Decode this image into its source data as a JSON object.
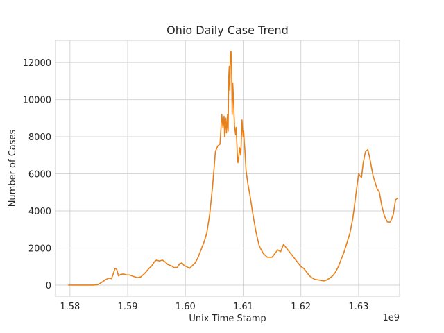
{
  "chart_data": {
    "type": "line",
    "title": "Ohio Daily Case Trend",
    "xlabel": "Unix Time Stamp",
    "ylabel": "Number of Cases",
    "x_offset_label": "1e9",
    "x_scale": 1000000000,
    "xlim": [
      1.5775,
      1.6371
    ],
    "ylim": [
      -600,
      13200
    ],
    "x_ticks": [
      1.58,
      1.59,
      1.6,
      1.61,
      1.62,
      1.63
    ],
    "x_tick_labels": [
      "1.58",
      "1.59",
      "1.60",
      "1.61",
      "1.62",
      "1.63"
    ],
    "y_ticks": [
      0,
      2000,
      4000,
      6000,
      8000,
      10000,
      12000
    ],
    "y_tick_labels": [
      "0",
      "2000",
      "4000",
      "6000",
      "8000",
      "10000",
      "12000"
    ],
    "grid": true,
    "line_color": "#e8801a",
    "series": [
      {
        "x": [
          1.5797,
          1.581,
          1.5825,
          1.584,
          1.5848,
          1.5855,
          1.5862,
          1.5868,
          1.5872,
          1.5875,
          1.5878,
          1.5881,
          1.5884,
          1.5888,
          1.5893,
          1.5898,
          1.5903,
          1.591,
          1.5917,
          1.5923,
          1.593,
          1.5937,
          1.5942,
          1.5946,
          1.595,
          1.5955,
          1.596,
          1.5965,
          1.597,
          1.5975,
          1.598,
          1.5986,
          1.599,
          1.5994,
          1.5998,
          1.6002,
          1.6007,
          1.6012,
          1.6017,
          1.6022,
          1.6027,
          1.6032,
          1.6037,
          1.6042,
          1.6047,
          1.6052,
          1.6056,
          1.606,
          1.6063,
          1.6065,
          1.6067,
          1.6068,
          1.6069,
          1.607,
          1.6071,
          1.6072,
          1.6073,
          1.6074,
          1.6075,
          1.6076,
          1.6077,
          1.6078,
          1.6079,
          1.608,
          1.6081,
          1.6082,
          1.6083,
          1.6085,
          1.6087,
          1.6088,
          1.609,
          1.6091,
          1.6092,
          1.6094,
          1.6096,
          1.6098,
          1.61,
          1.6101,
          1.6102,
          1.6103,
          1.6105,
          1.6108,
          1.6112,
          1.6117,
          1.6122,
          1.6128,
          1.6135,
          1.6142,
          1.615,
          1.616,
          1.6165,
          1.617,
          1.6175,
          1.618,
          1.6185,
          1.619,
          1.6195,
          1.62,
          1.6205,
          1.621,
          1.6215,
          1.622,
          1.6225,
          1.623,
          1.6235,
          1.624,
          1.6245,
          1.625,
          1.6255,
          1.626,
          1.6265,
          1.627,
          1.6275,
          1.628,
          1.6285,
          1.629,
          1.6295,
          1.63,
          1.6305,
          1.6308,
          1.6312,
          1.6316,
          1.6319,
          1.6322,
          1.6325,
          1.6328,
          1.6332,
          1.6336,
          1.634,
          1.6345,
          1.635,
          1.6355,
          1.636,
          1.6364,
          1.6368
        ],
        "y": [
          0,
          0,
          0,
          0,
          20,
          150,
          300,
          380,
          350,
          600,
          900,
          850,
          500,
          580,
          600,
          550,
          550,
          470,
          400,
          450,
          650,
          900,
          1050,
          1250,
          1350,
          1300,
          1350,
          1250,
          1100,
          1050,
          950,
          950,
          1150,
          1200,
          1050,
          1000,
          900,
          1050,
          1200,
          1500,
          1900,
          2300,
          2800,
          3800,
          5300,
          7200,
          7500,
          7600,
          9200,
          8500,
          9100,
          8000,
          8700,
          9000,
          8200,
          8600,
          9200,
          8300,
          11200,
          11800,
          10500,
          12400,
          12600,
          11800,
          9200,
          10900,
          10300,
          8600,
          8100,
          8500,
          7000,
          6600,
          6800,
          7400,
          7000,
          8900,
          8000,
          8300,
          7700,
          7300,
          6200,
          5500,
          4800,
          3800,
          2900,
          2100,
          1700,
          1500,
          1500,
          1900,
          1800,
          2200,
          2000,
          1800,
          1600,
          1400,
          1200,
          1000,
          900,
          700,
          500,
          380,
          300,
          280,
          250,
          230,
          280,
          380,
          500,
          700,
          1000,
          1400,
          1800,
          2300,
          2800,
          3600,
          4800,
          6000,
          5800,
          6600,
          7200,
          7300,
          6900,
          6400,
          5900,
          5600,
          5200,
          5000,
          4300,
          3700,
          3400,
          3400,
          3800,
          4600,
          4700
        ]
      }
    ]
  }
}
